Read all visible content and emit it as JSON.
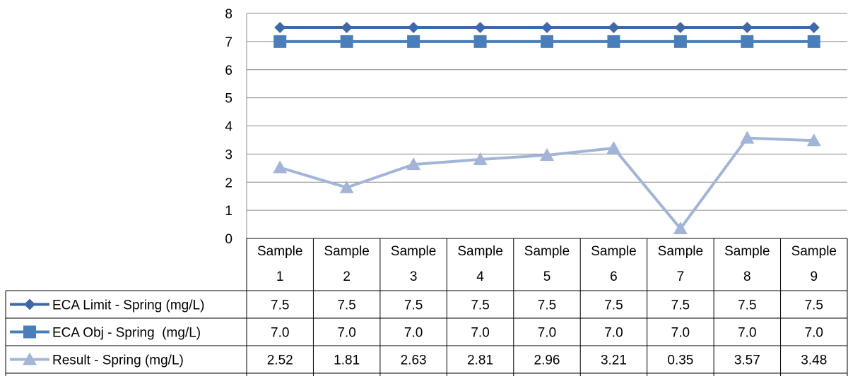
{
  "chart_data": {
    "type": "line",
    "title": "",
    "xlabel": "",
    "ylabel": "",
    "ylim": [
      0,
      8
    ],
    "yticks": [
      "0",
      "1",
      "2",
      "3",
      "4",
      "5",
      "6",
      "7",
      "8"
    ],
    "grid": true,
    "legend": "data-table-left",
    "categories": [
      [
        "Sample",
        "1"
      ],
      [
        "Sample",
        "2"
      ],
      [
        "Sample",
        "3"
      ],
      [
        "Sample",
        "4"
      ],
      [
        "Sample",
        "5"
      ],
      [
        "Sample",
        "6"
      ],
      [
        "Sample",
        "7"
      ],
      [
        "Sample",
        "8"
      ],
      [
        "Sample",
        "9"
      ]
    ],
    "series": [
      {
        "name": "ECA Limit - Spring (mg/L)",
        "marker": "diamond",
        "color": "#3d6aa6",
        "values": [
          7.5,
          7.5,
          7.5,
          7.5,
          7.5,
          7.5,
          7.5,
          7.5,
          7.5
        ],
        "labels": [
          "7.5",
          "7.5",
          "7.5",
          "7.5",
          "7.5",
          "7.5",
          "7.5",
          "7.5",
          "7.5"
        ]
      },
      {
        "name": "ECA Obj - Spring  (mg/L)",
        "marker": "square",
        "color": "#4a7ebb",
        "values": [
          7.0,
          7.0,
          7.0,
          7.0,
          7.0,
          7.0,
          7.0,
          7.0,
          7.0
        ],
        "labels": [
          "7.0",
          "7.0",
          "7.0",
          "7.0",
          "7.0",
          "7.0",
          "7.0",
          "7.0",
          "7.0"
        ]
      },
      {
        "name": "Result - Spring (mg/L)",
        "marker": "triangle",
        "color": "#a2b5d8",
        "values": [
          2.52,
          1.81,
          2.63,
          2.81,
          2.96,
          3.21,
          0.35,
          3.57,
          3.48
        ],
        "labels": [
          "2.52",
          "1.81",
          "2.63",
          "2.81",
          "2.96",
          "3.21",
          "0.35",
          "3.57",
          "3.48"
        ]
      }
    ]
  }
}
